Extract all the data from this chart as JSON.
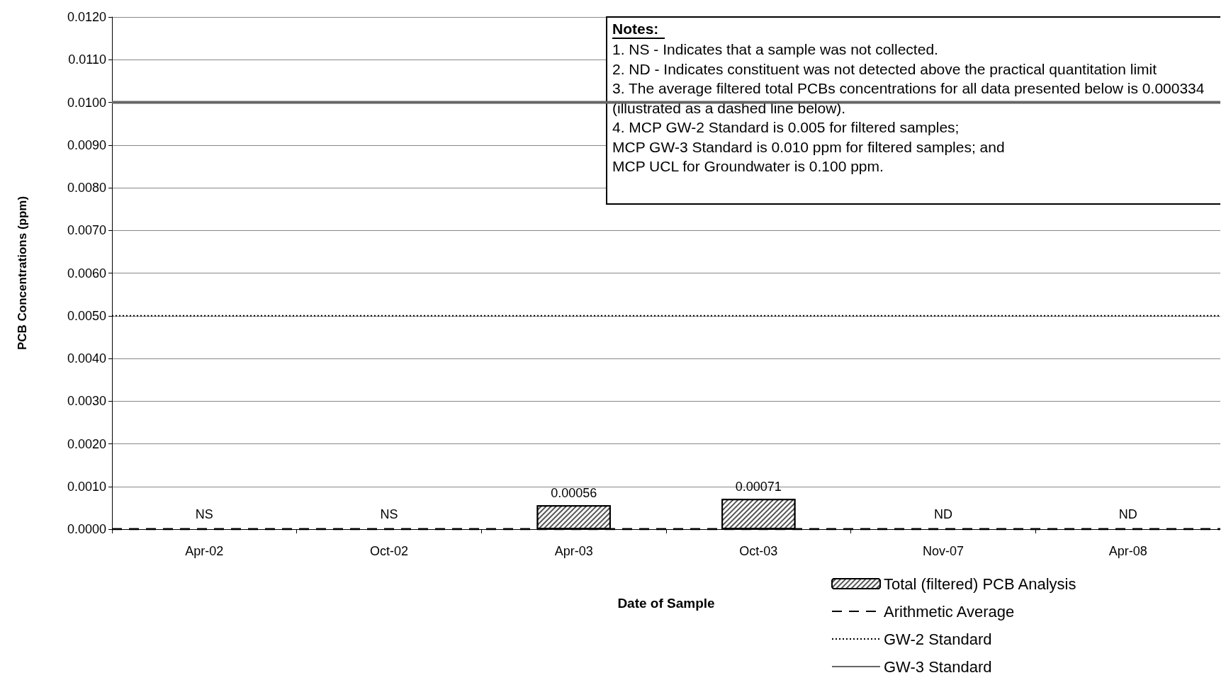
{
  "chart_data": {
    "type": "bar",
    "xlabel": "Date of Sample",
    "ylabel": "PCB Concentrations (ppm)",
    "categories": [
      "Apr-02",
      "Oct-02",
      "Apr-03",
      "Oct-03",
      "Nov-07",
      "Apr-08"
    ],
    "series": [
      {
        "name": "Total (filtered) PCB Analysis",
        "color": "#555555",
        "values": [
          null,
          null,
          0.00056,
          0.00071,
          null,
          null
        ],
        "value_labels": [
          "NS",
          "NS",
          "0.00056",
          "0.00071",
          "ND",
          "ND"
        ]
      }
    ],
    "ylim": [
      0,
      0.012
    ],
    "yticks": [
      {
        "value": 0,
        "label": "0.0000"
      },
      {
        "value": 0.001,
        "label": "0.0010"
      },
      {
        "value": 0.002,
        "label": "0.0020"
      },
      {
        "value": 0.003,
        "label": "0.0030"
      },
      {
        "value": 0.004,
        "label": "0.0040"
      },
      {
        "value": 0.005,
        "label": "0.0050"
      },
      {
        "value": 0.006,
        "label": "0.0060"
      },
      {
        "value": 0.007,
        "label": "0.0070"
      },
      {
        "value": 0.008,
        "label": "0.0080"
      },
      {
        "value": 0.009,
        "label": "0.0090"
      },
      {
        "value": 0.01,
        "label": "0.0100"
      },
      {
        "value": 0.011,
        "label": "0.0110"
      },
      {
        "value": 0.012,
        "label": "0.0120"
      }
    ],
    "ref_lines": [
      {
        "axis": "y",
        "value": 0,
        "label": "Arithmetic Average",
        "color": "#000000",
        "line_style": "dashed"
      },
      {
        "axis": "y",
        "value": 0.005,
        "label": "GW-2 Standard",
        "color": "#000000",
        "line_style": "dotted"
      },
      {
        "axis": "y",
        "value": 0.01,
        "label": "GW-3 Standard",
        "color": "#666666",
        "line_style": "solid"
      }
    ],
    "annotations": [
      "Notes:",
      "1. NS - Indicates that a sample was not collected.",
      "2. ND - Indicates constituent was not detected above the practical quantitation limit",
      "3. The average filtered total PCBs concentrations for all data presented below is 0.000334 (illustrated as a dashed line below).",
      "4. MCP GW-2 Standard is 0.005 for filtered samples;\nMCP GW-3 Standard is 0.010 ppm for filtered samples; and\nMCP UCL for Groundwater is 0.100 ppm."
    ],
    "grid": "y",
    "legend": "bottom right"
  }
}
